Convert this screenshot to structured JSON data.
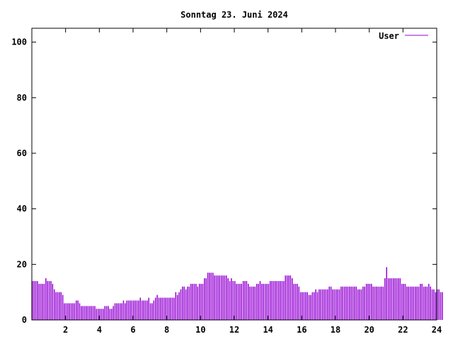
{
  "chart_data": {
    "type": "bar",
    "title": "Sonntag 23. Juni 2024",
    "xlabel": "",
    "ylabel": "",
    "xlim": [
      0,
      24
    ],
    "ylim": [
      0,
      105
    ],
    "x_ticks": [
      2,
      4,
      6,
      8,
      10,
      12,
      14,
      16,
      18,
      20,
      22,
      24
    ],
    "y_ticks": [
      0,
      20,
      40,
      60,
      80,
      100
    ],
    "x_tick_labels": [
      "2",
      "4",
      "6",
      "8",
      "10",
      "12",
      "14",
      "16",
      "18",
      "20",
      "22",
      "24"
    ],
    "y_tick_labels": [
      "0",
      "20",
      "40",
      "60",
      "80",
      "100"
    ],
    "legend_position": "top-right",
    "grid": false,
    "series": [
      {
        "name": "User",
        "color": "#9400d3",
        "interval_hours": 0.1,
        "values": [
          14,
          14,
          14,
          14,
          13,
          13,
          13,
          13,
          15,
          14,
          14,
          14,
          13,
          11,
          10,
          10,
          10,
          10,
          9,
          6,
          6,
          6,
          6,
          6,
          6,
          6,
          7,
          7,
          6,
          5,
          5,
          5,
          5,
          5,
          5,
          5,
          5,
          5,
          4,
          4,
          4,
          4,
          4,
          5,
          5,
          5,
          4,
          4,
          5,
          6,
          6,
          6,
          6,
          6,
          7,
          6,
          7,
          7,
          7,
          7,
          7,
          7,
          7,
          7,
          8,
          7,
          7,
          7,
          7,
          8,
          6,
          6,
          7,
          8,
          9,
          8,
          8,
          8,
          8,
          8,
          8,
          8,
          8,
          8,
          8,
          10,
          9,
          10,
          11,
          12,
          12,
          11,
          12,
          12,
          13,
          13,
          13,
          13,
          12,
          13,
          13,
          13,
          15,
          15,
          17,
          17,
          17,
          17,
          16,
          16,
          16,
          16,
          16,
          16,
          16,
          16,
          15,
          14,
          15,
          14,
          14,
          13,
          13,
          13,
          13,
          14,
          14,
          14,
          13,
          12,
          12,
          12,
          12,
          13,
          13,
          14,
          13,
          13,
          13,
          13,
          13,
          14,
          14,
          14,
          14,
          14,
          14,
          14,
          14,
          14,
          16,
          16,
          16,
          16,
          15,
          13,
          13,
          13,
          12,
          10,
          10,
          10,
          10,
          10,
          9,
          9,
          10,
          10,
          11,
          10,
          11,
          11,
          11,
          11,
          11,
          11,
          12,
          12,
          11,
          11,
          11,
          11,
          11,
          12,
          12,
          12,
          12,
          12,
          12,
          12,
          12,
          12,
          12,
          11,
          11,
          11,
          12,
          12,
          13,
          13,
          13,
          13,
          12,
          12,
          12,
          12,
          12,
          12,
          12,
          15,
          19,
          15,
          15,
          15,
          15,
          15,
          15,
          15,
          15,
          13,
          13,
          13,
          12,
          12,
          12,
          12,
          12,
          12,
          12,
          12,
          13,
          13,
          12,
          12,
          12,
          13,
          12,
          11,
          11,
          10,
          11,
          11,
          10,
          10
        ]
      }
    ]
  }
}
